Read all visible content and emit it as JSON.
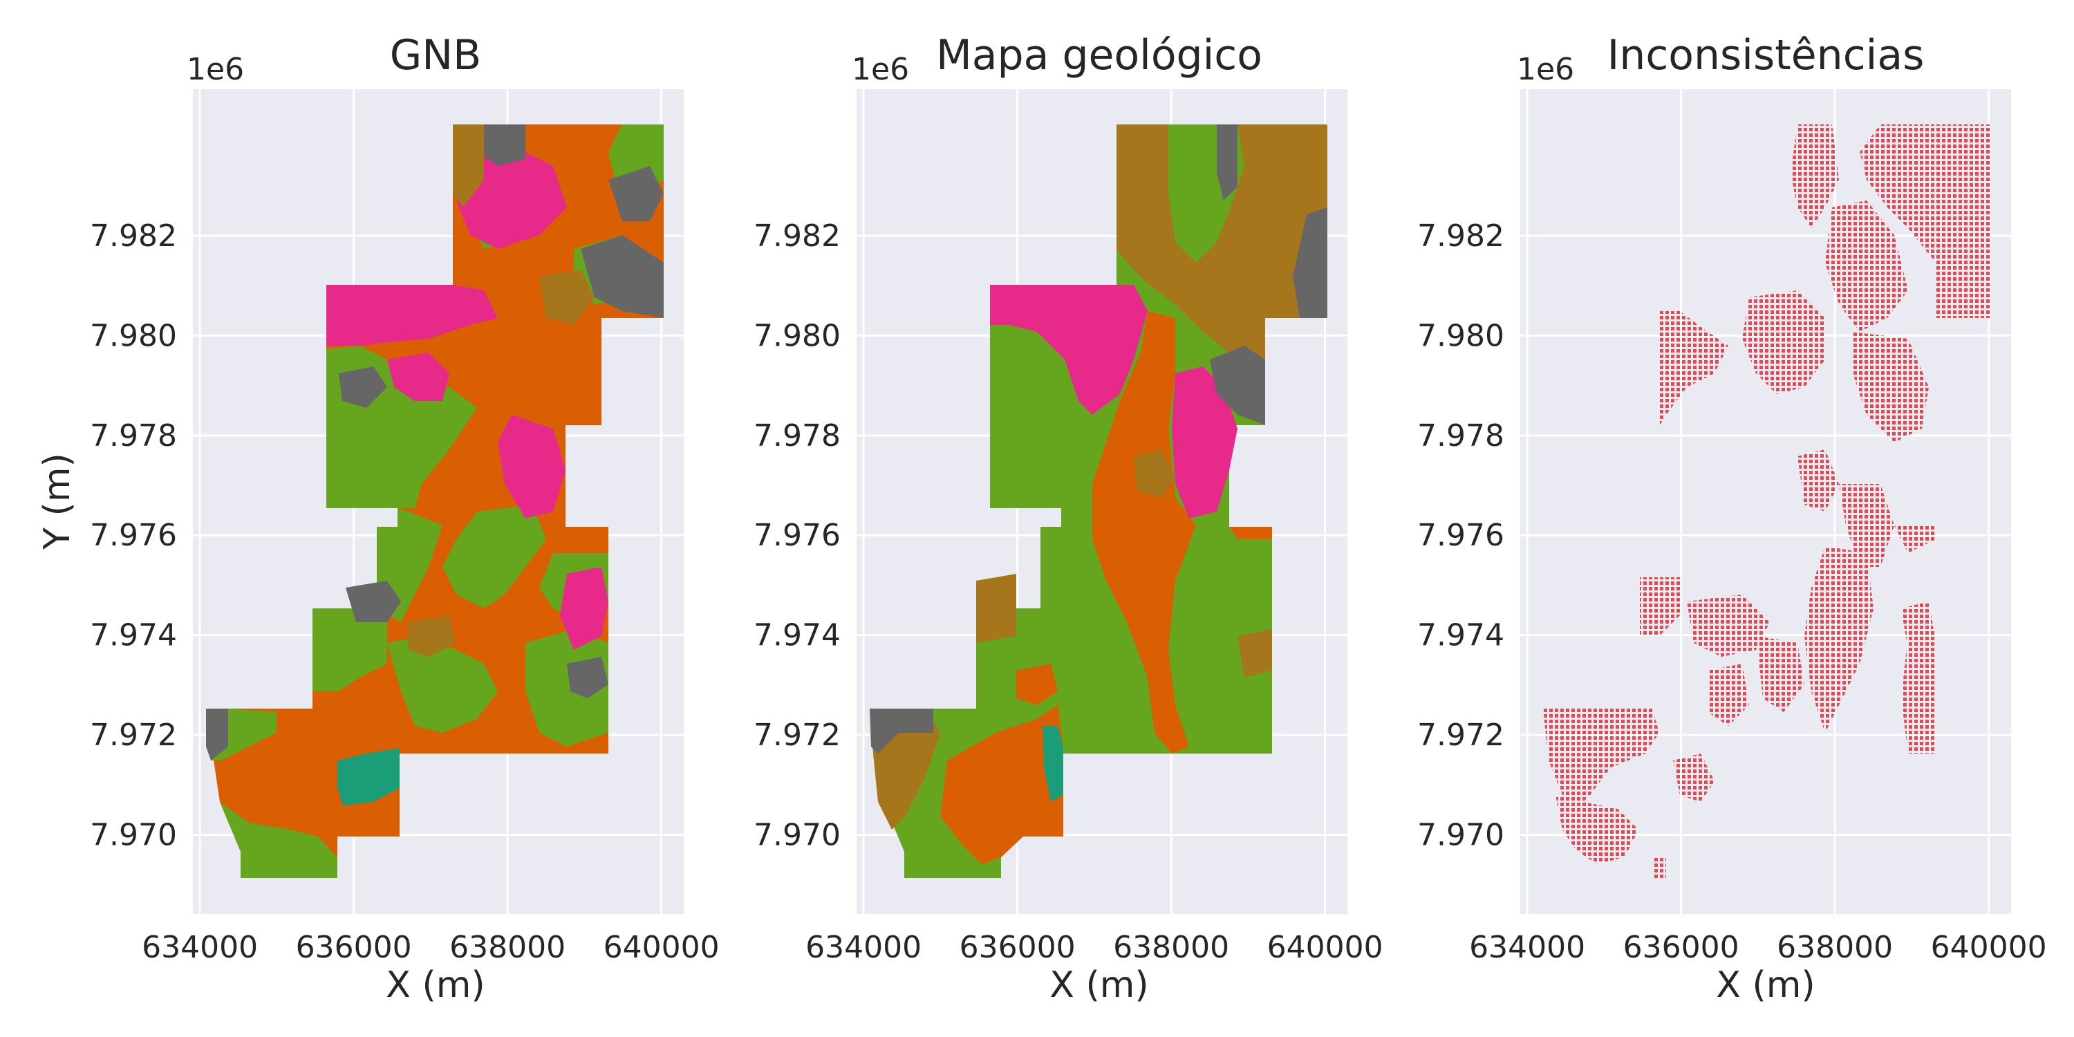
{
  "chart_data": [
    {
      "type": "map",
      "title": "GNB",
      "xlabel": "X (m)",
      "ylabel": "Y (m)",
      "y_offset_label": "1e6",
      "xticks": [
        "634000",
        "636000",
        "638000",
        "640000"
      ],
      "yticks": [
        "7.970",
        "7.972",
        "7.974",
        "7.976",
        "7.978",
        "7.980",
        "7.982"
      ],
      "xlim": [
        633900,
        640300
      ],
      "ylim": [
        7968400,
        7984950
      ],
      "grid": true,
      "classes": [
        "orange",
        "green",
        "pink",
        "brown",
        "gray",
        "teal"
      ]
    },
    {
      "type": "map",
      "title": "Mapa geológico",
      "xlabel": "X (m)",
      "ylabel": "",
      "y_offset_label": "1e6",
      "xticks": [
        "634000",
        "636000",
        "638000",
        "640000"
      ],
      "yticks": [
        "7.970",
        "7.972",
        "7.974",
        "7.976",
        "7.978",
        "7.980",
        "7.982"
      ],
      "xlim": [
        633900,
        640300
      ],
      "ylim": [
        7968400,
        7984950
      ],
      "grid": true,
      "classes": [
        "orange",
        "green",
        "pink",
        "brown",
        "gray",
        "teal"
      ]
    },
    {
      "type": "scatter",
      "title": "Inconsistências",
      "xlabel": "X (m)",
      "ylabel": "",
      "y_offset_label": "1e6",
      "xticks": [
        "634000",
        "636000",
        "638000",
        "640000"
      ],
      "yticks": [
        "7.970",
        "7.972",
        "7.974",
        "7.976",
        "7.978",
        "7.980",
        "7.982"
      ],
      "xlim": [
        633900,
        640300
      ],
      "ylim": [
        7968400,
        7984950
      ],
      "grid": true,
      "point_color": "red"
    }
  ],
  "colors": {
    "orange": "#d95f02",
    "green": "#66a61e",
    "pink": "#e7298a",
    "brown": "#a6761d",
    "gray": "#666666",
    "teal": "#1b9e77",
    "red": "#e8474f",
    "plot_background": "#eaeaf2"
  }
}
